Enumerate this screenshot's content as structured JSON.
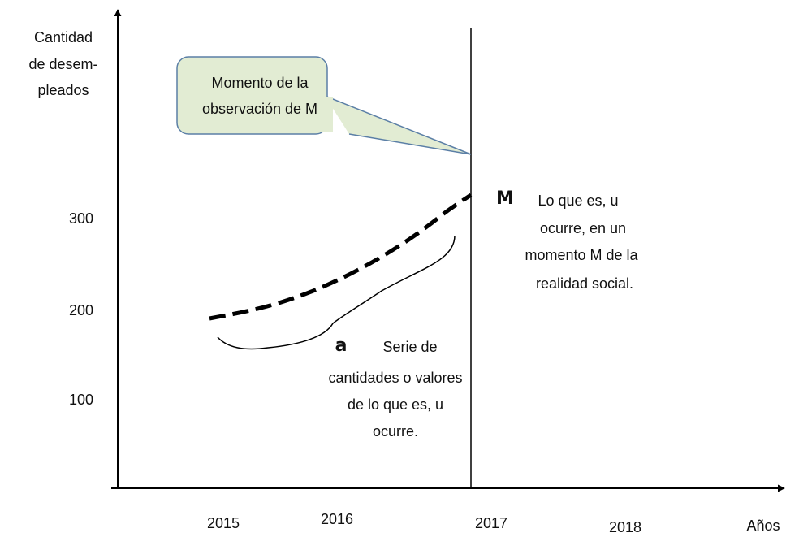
{
  "axis_label": [
    "Cantidad",
    "de desem-",
    "pleados"
  ],
  "y_labels": [
    "300",
    "200",
    "100"
  ],
  "x_labels": [
    "2015",
    "2016",
    "2017",
    "2018"
  ],
  "x_axis_label": "Años",
  "callout": [
    "Momento de la",
    "observación de M"
  ],
  "annotation_m": {
    "marker": "M",
    "lines": [
      "Lo que es, u",
      "ocurre, en un",
      "momento M  de la",
      "realidad social."
    ]
  },
  "annotation_a": {
    "marker": "a",
    "lines": [
      "Serie de",
      "cantidades o valores",
      "de lo que  es, u",
      "ocurre."
    ]
  }
}
